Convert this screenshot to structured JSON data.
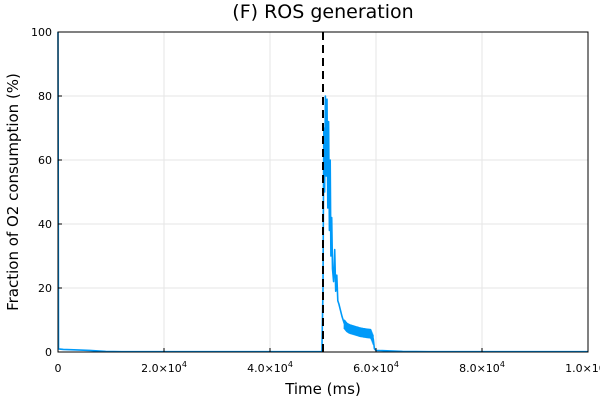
{
  "chart_data": {
    "type": "line",
    "title": "(F) ROS generation",
    "xlabel": "Time (ms)",
    "ylabel": "Fraction of O2 consumption (%)",
    "xlim": [
      0,
      100000
    ],
    "ylim": [
      0,
      100
    ],
    "grid": true,
    "legend": "none",
    "x_ticks": [
      {
        "value": 0,
        "base": "0",
        "exp": ""
      },
      {
        "value": 20000,
        "base": "2.0×10",
        "exp": "4"
      },
      {
        "value": 40000,
        "base": "4.0×10",
        "exp": "4"
      },
      {
        "value": 60000,
        "base": "6.0×10",
        "exp": "4"
      },
      {
        "value": 80000,
        "base": "8.0×10",
        "exp": "4"
      },
      {
        "value": 100000,
        "base": "1.0×10",
        "exp": "5"
      }
    ],
    "y_ticks": [
      {
        "value": 0,
        "label": "0"
      },
      {
        "value": 20,
        "label": "20"
      },
      {
        "value": 40,
        "label": "40"
      },
      {
        "value": 60,
        "label": "60"
      },
      {
        "value": 80,
        "label": "80"
      },
      {
        "value": 100,
        "label": "100"
      }
    ],
    "series": [
      {
        "color": "#009af9",
        "x": [
          0,
          100,
          300,
          1000,
          3000,
          6000,
          9000,
          12000,
          20000,
          30000,
          40000,
          49800,
          50000,
          50150,
          50300,
          50450,
          50600,
          50750,
          50900,
          51050,
          51200,
          51350,
          51500,
          51650,
          51800,
          52000,
          52200,
          52400,
          52600,
          52800,
          53000,
          53300,
          53600,
          54000,
          54500,
          55000,
          56000,
          57000,
          58000,
          59000,
          59500,
          59700,
          60000,
          65000,
          70000,
          80000,
          90000,
          100000
        ],
        "y": [
          100,
          1.0,
          0.9,
          0.8,
          0.7,
          0.5,
          0.2,
          0.1,
          0.1,
          0.1,
          0.1,
          0.1,
          20,
          70,
          50,
          80,
          55,
          79,
          45,
          72,
          38,
          60,
          30,
          42,
          26,
          22,
          32,
          19,
          24,
          16,
          15,
          13,
          11,
          9,
          8,
          7.5,
          7,
          6.5,
          6.2,
          6,
          4,
          1,
          0.5,
          0.2,
          0.1,
          0.1,
          0.1,
          0.1
        ]
      },
      {
        "color": "#000000",
        "style": "dashed",
        "x": [
          50000,
          50000
        ],
        "y": [
          0,
          100
        ]
      }
    ]
  }
}
